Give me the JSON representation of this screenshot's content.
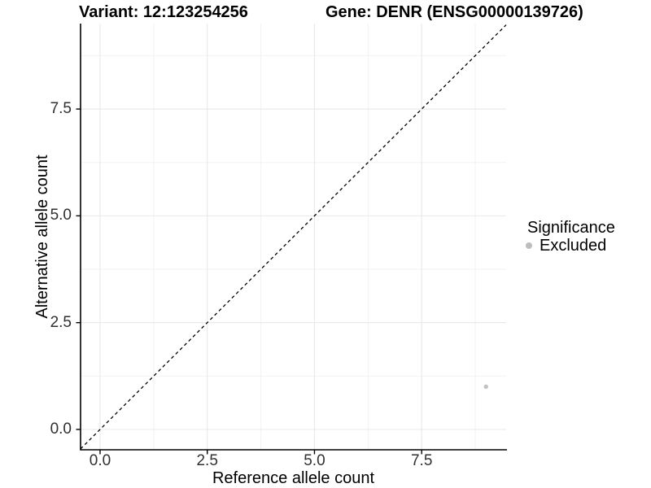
{
  "page": {
    "background_color": "#ffffff"
  },
  "chart_data": {
    "type": "scatter",
    "title_left": "Variant: 12:123254256",
    "title_right": "Gene: DENR (ENSG00000139726)",
    "xlabel": "Reference allele count",
    "ylabel": "Alternative allele count",
    "xlim": [
      -0.455,
      9.47
    ],
    "ylim": [
      -0.476,
      9.5
    ],
    "xticks": [
      0,
      2.5,
      5,
      7.5
    ],
    "yticks": [
      0,
      2.5,
      5,
      7.5
    ],
    "xtick_labels": [
      "0.0",
      "2.5",
      "5.0",
      "7.5"
    ],
    "ytick_labels": [
      "0.0",
      "2.5",
      "5.0",
      "7.5"
    ],
    "minor_xticks": [
      1.25,
      3.75,
      6.25,
      8.75
    ],
    "minor_yticks": [
      1.25,
      3.75,
      6.25,
      8.75
    ],
    "grid": {
      "enabled": true,
      "major_color": "#e8e8e8",
      "minor_color": "#f2f2f2"
    },
    "axis_color": "#000000",
    "tick_label_color": "#303030",
    "reference_line": {
      "kind": "identity y=x",
      "style": "dashed",
      "color": "#000000"
    },
    "series": [
      {
        "name": "Excluded",
        "color": "#c2c2c2",
        "point_radius": 2.7,
        "points": [
          {
            "x": 9,
            "y": 1
          }
        ]
      }
    ],
    "legend": {
      "title": "Significance",
      "position": "right",
      "entries": [
        {
          "label": "Excluded",
          "color": "#bebebe"
        }
      ]
    }
  }
}
